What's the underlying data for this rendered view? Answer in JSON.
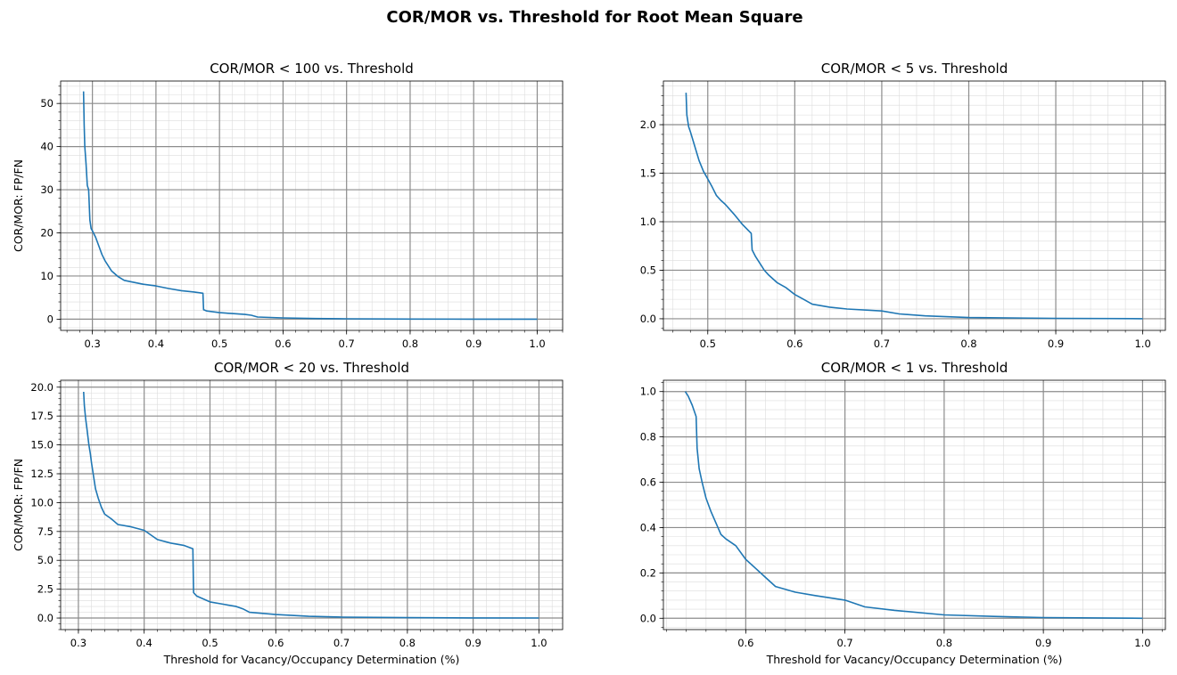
{
  "suptitle": "COR/MOR vs. Threshold for Root Mean Square",
  "chart_data": [
    {
      "type": "line",
      "title": "COR/MOR < 100 vs. Threshold",
      "xlabel": "",
      "ylabel": "COR/MOR: FP/FN",
      "xlim": [
        0.25,
        1.04
      ],
      "ylim": [
        -2.6,
        55.2
      ],
      "xticks": [
        0.3,
        0.4,
        0.5,
        0.6,
        0.7,
        0.8,
        0.9,
        1.0
      ],
      "xtick_labels": [
        "0.3",
        "0.4",
        "0.5",
        "0.6",
        "0.7",
        "0.8",
        "0.9",
        "1.0"
      ],
      "yticks": [
        0,
        10,
        20,
        30,
        40,
        50
      ],
      "ytick_labels": [
        "0",
        "10",
        "20",
        "30",
        "40",
        "50"
      ],
      "grid": true,
      "color": "#1f77b4",
      "x": [
        0.286,
        0.287,
        0.288,
        0.29,
        0.292,
        0.294,
        0.296,
        0.298,
        0.3,
        0.305,
        0.31,
        0.315,
        0.32,
        0.33,
        0.34,
        0.35,
        0.36,
        0.38,
        0.4,
        0.42,
        0.44,
        0.46,
        0.474,
        0.475,
        0.48,
        0.5,
        0.52,
        0.54,
        0.55,
        0.56,
        0.6,
        0.65,
        0.7,
        0.8,
        0.9,
        1.0
      ],
      "y": [
        52.8,
        45.0,
        40.0,
        36.0,
        31.0,
        30.0,
        23.0,
        21.0,
        20.5,
        19.0,
        17.0,
        15.0,
        13.5,
        11.2,
        9.9,
        9.0,
        8.7,
        8.1,
        7.7,
        7.1,
        6.6,
        6.3,
        6.0,
        2.2,
        1.9,
        1.5,
        1.3,
        1.1,
        0.9,
        0.5,
        0.3,
        0.15,
        0.08,
        0.03,
        0.01,
        0.0
      ]
    },
    {
      "type": "line",
      "title": "COR/MOR < 5 vs. Threshold",
      "xlabel": "",
      "ylabel": "",
      "xlim": [
        0.449,
        1.026
      ],
      "ylim": [
        -0.12,
        2.45
      ],
      "xticks": [
        0.5,
        0.6,
        0.7,
        0.8,
        0.9,
        1.0
      ],
      "xtick_labels": [
        "0.5",
        "0.6",
        "0.7",
        "0.8",
        "0.9",
        "1.0"
      ],
      "yticks": [
        0.0,
        0.5,
        1.0,
        1.5,
        2.0
      ],
      "ytick_labels": [
        "0.0",
        "0.5",
        "1.0",
        "1.5",
        "2.0"
      ],
      "grid": true,
      "color": "#1f77b4",
      "x": [
        0.475,
        0.476,
        0.478,
        0.48,
        0.485,
        0.49,
        0.495,
        0.5,
        0.505,
        0.51,
        0.515,
        0.52,
        0.53,
        0.54,
        0.55,
        0.551,
        0.555,
        0.56,
        0.565,
        0.57,
        0.58,
        0.59,
        0.6,
        0.61,
        0.62,
        0.64,
        0.66,
        0.7,
        0.72,
        0.75,
        0.8,
        0.9,
        1.0
      ],
      "y": [
        2.33,
        2.1,
        1.98,
        1.93,
        1.78,
        1.63,
        1.52,
        1.44,
        1.36,
        1.27,
        1.22,
        1.18,
        1.08,
        0.97,
        0.88,
        0.71,
        0.64,
        0.57,
        0.5,
        0.45,
        0.37,
        0.32,
        0.25,
        0.2,
        0.15,
        0.12,
        0.1,
        0.08,
        0.05,
        0.03,
        0.012,
        0.004,
        0.0
      ]
    },
    {
      "type": "line",
      "title": "COR/MOR < 20 vs. Threshold",
      "xlabel": "Threshold for Vacancy/Occupancy Determination (%)",
      "ylabel": "COR/MOR: FP/FN",
      "xlim": [
        0.273,
        1.036
      ],
      "ylim": [
        -1.0,
        20.6
      ],
      "xticks": [
        0.3,
        0.4,
        0.5,
        0.6,
        0.7,
        0.8,
        0.9,
        1.0
      ],
      "xtick_labels": [
        "0.3",
        "0.4",
        "0.5",
        "0.6",
        "0.7",
        "0.8",
        "0.9",
        "1.0"
      ],
      "yticks": [
        0.0,
        2.5,
        5.0,
        7.5,
        10.0,
        12.5,
        15.0,
        17.5,
        20.0
      ],
      "ytick_labels": [
        "0.0",
        "2.5",
        "5.0",
        "7.5",
        "10.0",
        "12.5",
        "15.0",
        "17.5",
        "20.0"
      ],
      "grid": true,
      "color": "#1f77b4",
      "x": [
        0.308,
        0.309,
        0.311,
        0.313,
        0.316,
        0.318,
        0.32,
        0.323,
        0.326,
        0.33,
        0.335,
        0.34,
        0.35,
        0.36,
        0.38,
        0.4,
        0.42,
        0.44,
        0.46,
        0.474,
        0.475,
        0.48,
        0.5,
        0.52,
        0.54,
        0.55,
        0.56,
        0.6,
        0.65,
        0.7,
        0.8,
        0.9,
        1.0
      ],
      "y": [
        19.6,
        18.4,
        17.3,
        16.4,
        15.0,
        14.3,
        13.4,
        12.3,
        11.2,
        10.4,
        9.6,
        9.0,
        8.6,
        8.1,
        7.9,
        7.6,
        6.8,
        6.5,
        6.3,
        6.0,
        2.2,
        1.9,
        1.4,
        1.2,
        1.0,
        0.8,
        0.5,
        0.3,
        0.15,
        0.08,
        0.03,
        0.01,
        0.0
      ]
    },
    {
      "type": "line",
      "title": "COR/MOR < 1 vs. Threshold",
      "xlabel": "Threshold for Vacancy/Occupancy Determination (%)",
      "ylabel": "",
      "xlim": [
        0.517,
        1.023
      ],
      "ylim": [
        -0.05,
        1.05
      ],
      "xticks": [
        0.6,
        0.7,
        0.8,
        0.9,
        1.0
      ],
      "xtick_labels": [
        "0.6",
        "0.7",
        "0.8",
        "0.9",
        "1.0"
      ],
      "yticks": [
        0.0,
        0.2,
        0.4,
        0.6,
        0.8,
        1.0
      ],
      "ytick_labels": [
        "0.0",
        "0.2",
        "0.4",
        "0.6",
        "0.8",
        "1.0"
      ],
      "grid": true,
      "color": "#1f77b4",
      "x": [
        0.539,
        0.542,
        0.546,
        0.55,
        0.551,
        0.553,
        0.556,
        0.56,
        0.565,
        0.57,
        0.575,
        0.58,
        0.59,
        0.6,
        0.61,
        0.62,
        0.63,
        0.65,
        0.67,
        0.7,
        0.72,
        0.75,
        0.8,
        0.85,
        0.9,
        1.0
      ],
      "y": [
        1.0,
        0.98,
        0.94,
        0.89,
        0.75,
        0.66,
        0.6,
        0.53,
        0.47,
        0.42,
        0.37,
        0.35,
        0.32,
        0.26,
        0.22,
        0.18,
        0.14,
        0.115,
        0.1,
        0.08,
        0.05,
        0.035,
        0.015,
        0.008,
        0.003,
        0.0
      ]
    }
  ]
}
